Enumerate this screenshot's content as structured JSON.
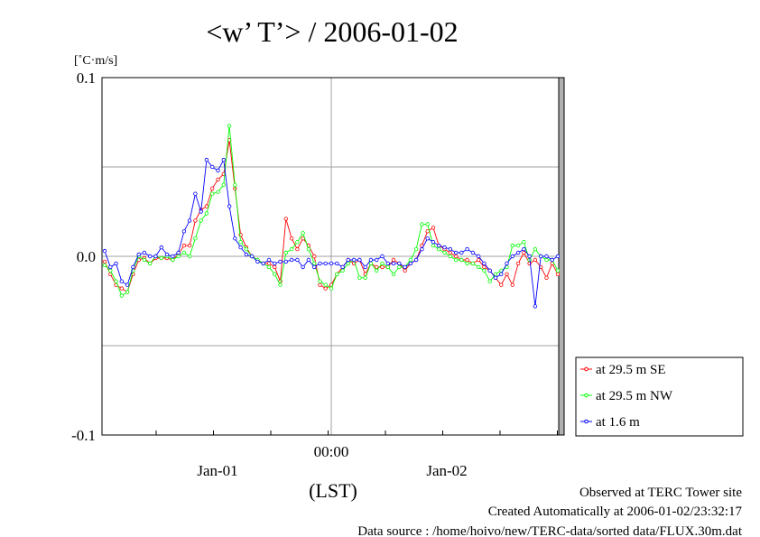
{
  "chart_data": {
    "type": "line",
    "title": "<w’ T’> / 2006-01-02",
    "ylabel_unit": "[˚C·m/s]",
    "ylim": [
      -0.1,
      0.1
    ],
    "y_ticks": [
      "0.1",
      "0.0",
      "-0.1"
    ],
    "x_tick_labels": [
      "00:00",
      "Jan-01",
      "Jan-02"
    ],
    "xlabel": "(LST)",
    "grid": true,
    "legend_position": "right-bottom",
    "series": [
      {
        "name": "at 29.5 m SE",
        "color": "#ff0000",
        "values": [
          -0.003,
          -0.01,
          -0.016,
          -0.018,
          -0.02,
          -0.01,
          -0.002,
          -0.001,
          -0.004,
          -0.001,
          -0.001,
          -0.001,
          -0.002,
          0.001,
          0.006,
          0.006,
          0.02,
          0.026,
          0.028,
          0.038,
          0.043,
          0.046,
          0.065,
          0.038,
          0.012,
          0.005,
          0.0,
          -0.002,
          -0.004,
          -0.004,
          -0.006,
          -0.014,
          0.021,
          0.01,
          0.004,
          0.01,
          0.006,
          0.0,
          -0.016,
          -0.018,
          -0.016,
          -0.01,
          -0.006,
          -0.002,
          -0.004,
          -0.002,
          -0.01,
          -0.004,
          -0.006,
          -0.006,
          -0.006,
          -0.002,
          -0.004,
          -0.008,
          -0.004,
          -0.002,
          0.006,
          0.014,
          0.016,
          0.006,
          0.004,
          0.002,
          0.0,
          -0.002,
          -0.002,
          -0.004,
          -0.002,
          -0.006,
          -0.008,
          -0.012,
          -0.016,
          -0.01,
          -0.016,
          -0.004,
          0.002,
          -0.004,
          -0.002,
          -0.006,
          -0.012,
          -0.004,
          -0.01
        ]
      },
      {
        "name": "at 29.5 m NW",
        "color": "#00ff00",
        "values": [
          -0.005,
          -0.008,
          -0.014,
          -0.022,
          -0.02,
          -0.008,
          0.0,
          -0.002,
          -0.004,
          0.0,
          -0.001,
          0.0,
          -0.002,
          0.0,
          0.002,
          0.0,
          0.01,
          0.02,
          0.024,
          0.035,
          0.036,
          0.04,
          0.073,
          0.04,
          0.008,
          0.004,
          0.0,
          -0.002,
          -0.004,
          -0.006,
          -0.01,
          -0.016,
          0.002,
          0.004,
          0.008,
          0.013,
          0.004,
          -0.004,
          -0.014,
          -0.016,
          -0.018,
          -0.01,
          -0.008,
          -0.004,
          -0.002,
          -0.012,
          -0.012,
          -0.004,
          -0.008,
          -0.004,
          -0.006,
          -0.01,
          -0.006,
          -0.006,
          -0.002,
          0.004,
          0.018,
          0.018,
          0.006,
          0.004,
          0.002,
          0.0,
          -0.002,
          -0.002,
          -0.004,
          -0.004,
          -0.006,
          -0.008,
          -0.014,
          -0.01,
          -0.008,
          -0.006,
          0.006,
          0.006,
          0.008,
          -0.002,
          0.004,
          0.0,
          -0.002,
          -0.002,
          -0.008
        ]
      },
      {
        "name": "at 1.6 m",
        "color": "#0000ff",
        "values": [
          0.003,
          -0.006,
          -0.004,
          -0.014,
          -0.016,
          -0.006,
          0.001,
          0.002,
          0.0,
          0.0,
          0.005,
          0.001,
          0.0,
          0.002,
          0.014,
          0.02,
          0.035,
          0.025,
          0.054,
          0.05,
          0.048,
          0.054,
          0.028,
          0.01,
          0.005,
          0.001,
          0.0,
          -0.003,
          -0.004,
          -0.002,
          -0.004,
          -0.003,
          -0.003,
          -0.002,
          -0.002,
          -0.006,
          -0.002,
          -0.006,
          -0.004,
          -0.004,
          -0.004,
          -0.004,
          -0.006,
          -0.002,
          -0.002,
          -0.002,
          -0.006,
          -0.002,
          -0.002,
          0.0,
          -0.004,
          -0.004,
          -0.004,
          -0.006,
          -0.004,
          -0.002,
          0.004,
          0.01,
          0.008,
          0.006,
          0.005,
          0.004,
          0.002,
          0.002,
          0.004,
          0.002,
          0.0,
          -0.004,
          -0.008,
          -0.012,
          -0.01,
          -0.004,
          0.0,
          0.002,
          0.004,
          0.0,
          -0.028,
          0.0,
          0.0,
          -0.002,
          0.0
        ]
      }
    ]
  },
  "footer": {
    "line1": "Observed at TERC Tower site",
    "line2": "Created Automatically at 2006-01-02/23:32:17",
    "line3": "Data source : /home/hoivo/new/TERC-data/sorted  data/FLUX.30m.dat"
  }
}
